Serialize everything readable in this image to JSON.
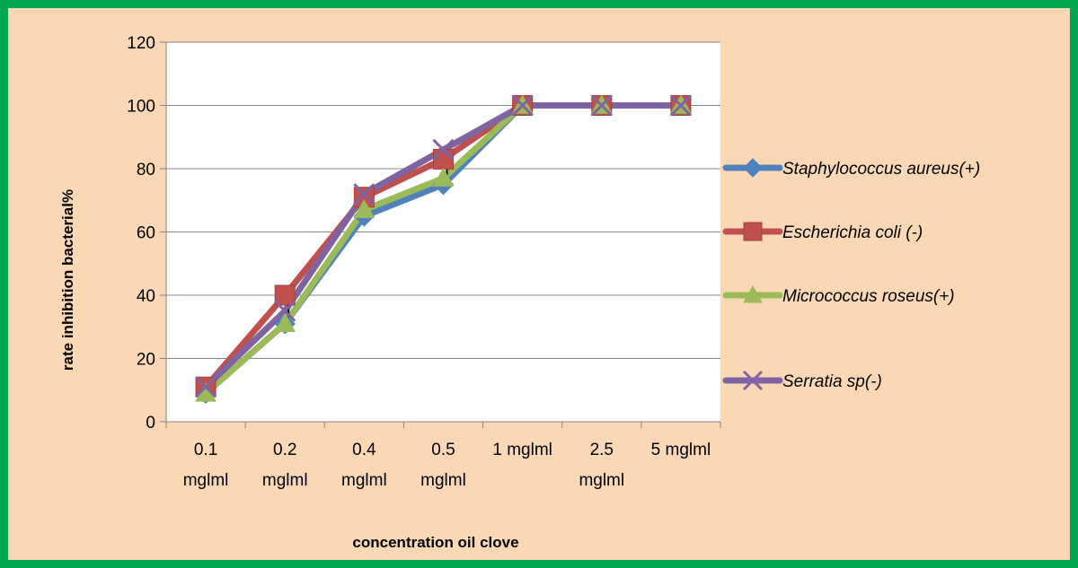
{
  "chart_data": {
    "type": "line",
    "title": "",
    "xlabel": "concentration oil clove",
    "ylabel": "rate inhibition  bacterial%",
    "ylim": [
      0,
      120
    ],
    "yticks": [
      "0",
      "20",
      "40",
      "60",
      "80",
      "100",
      "120"
    ],
    "grid": "horizontal",
    "legend_position": "right",
    "categories": [
      [
        "0.1",
        "mglml"
      ],
      [
        "0.2",
        "mglml"
      ],
      [
        "0.4",
        "mglml"
      ],
      [
        "0.5",
        "mglml"
      ],
      [
        "1 mglml"
      ],
      [
        "2.5",
        "mglml"
      ],
      [
        "5 mglml"
      ]
    ],
    "series": [
      {
        "name": "Staphylococcus aureus(+)",
        "color": "#4f81bd",
        "marker": "diamond",
        "values": [
          9,
          31,
          65,
          75,
          100,
          100,
          100
        ]
      },
      {
        "name": "Escherichia coli  (-)",
        "color": "#c0504d",
        "marker": "square",
        "values": [
          11,
          40,
          71,
          83,
          100,
          100,
          100
        ]
      },
      {
        "name": "Micrococcus roseus(+)",
        "color": "#9bbb59",
        "marker": "triangle",
        "values": [
          9,
          31,
          67,
          77,
          100,
          100,
          100
        ]
      },
      {
        "name": "Serratia sp(-)",
        "color": "#8064a2",
        "marker": "x",
        "values": [
          11,
          35,
          72,
          86,
          100,
          100,
          100
        ]
      }
    ],
    "error_bars": [
      {
        "category_index": 0,
        "low": 8,
        "high": 12
      },
      {
        "category_index": 1,
        "low": 31,
        "high": 39
      },
      {
        "category_index": 2,
        "low": 64,
        "high": 72
      },
      {
        "category_index": 3,
        "low": 76,
        "high": 86
      }
    ]
  }
}
